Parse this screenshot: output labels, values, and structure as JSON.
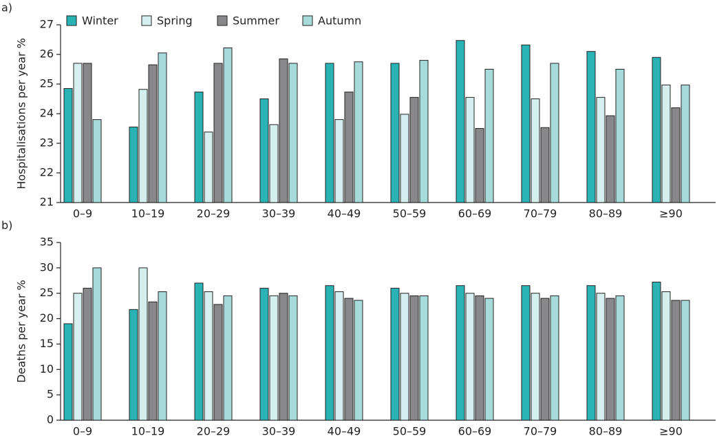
{
  "chart_data": [
    {
      "type": "bar",
      "label": "a)",
      "y_label": "Hospitalisations per year %",
      "categories": [
        "0–9",
        "10–19",
        "20–29",
        "30–39",
        "40–49",
        "50–59",
        "60–69",
        "70–79",
        "80–89",
        "≥90"
      ],
      "series": [
        {
          "name": "Winter",
          "color": "#2ab3b4",
          "values": [
            24.85,
            23.55,
            24.73,
            24.5,
            25.7,
            25.7,
            26.47,
            26.32,
            26.1,
            25.9
          ]
        },
        {
          "name": "Spring",
          "color": "#d5eeee",
          "values": [
            25.7,
            24.82,
            23.38,
            23.63,
            23.8,
            23.98,
            24.55,
            24.5,
            24.55,
            24.97
          ]
        },
        {
          "name": "Summer",
          "color": "#88888b",
          "values": [
            25.7,
            25.65,
            25.7,
            25.85,
            24.73,
            24.55,
            23.5,
            23.53,
            23.93,
            24.2
          ]
        },
        {
          "name": "Autumn",
          "color": "#a7dadb",
          "values": [
            23.8,
            26.05,
            26.22,
            25.7,
            25.75,
            25.8,
            25.5,
            25.7,
            25.5,
            24.97
          ]
        }
      ],
      "ylim": [
        21,
        27
      ],
      "yticks": [
        21,
        22,
        23,
        24,
        25,
        26,
        27
      ],
      "legend": "top-left"
    },
    {
      "type": "bar",
      "label": "b)",
      "y_label": "Deaths per year %",
      "categories": [
        "0–9",
        "10–19",
        "20–29",
        "30–39",
        "40–49",
        "50–59",
        "60–69",
        "70–79",
        "80–89",
        "≥90"
      ],
      "series": [
        {
          "color": "#2ab3b4",
          "values": [
            19,
            21.8,
            27,
            26,
            26.5,
            26,
            26.5,
            26.5,
            26.5,
            27.2
          ]
        },
        {
          "color": "#d5eeee",
          "values": [
            25,
            30,
            25.3,
            24.5,
            25.3,
            25,
            25,
            25,
            25,
            25.3
          ]
        },
        {
          "color": "#88888b",
          "values": [
            26,
            23.3,
            22.8,
            25,
            24,
            24.5,
            24.5,
            24,
            24,
            23.6
          ]
        },
        {
          "color": "#a7dadb",
          "values": [
            30,
            25.3,
            24.5,
            24.5,
            23.6,
            24.5,
            24,
            24.5,
            24.5,
            23.6
          ]
        }
      ],
      "ylim": [
        0,
        35
      ],
      "yticks": [
        0,
        5,
        10,
        15,
        20,
        25,
        30,
        35
      ]
    }
  ]
}
